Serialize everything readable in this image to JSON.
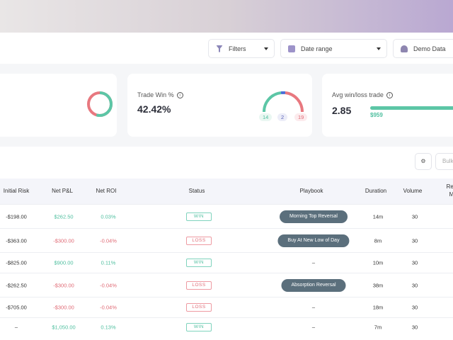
{
  "filters": {
    "filters_label": "Filters",
    "date_label": "Date range",
    "account_label": "Demo Data"
  },
  "cards": {
    "win_pct": {
      "label": "Trade Win %",
      "value": "42.42%",
      "wins": "14",
      "breakeven": "2",
      "losses": "19"
    },
    "avg_win_loss": {
      "label": "Avg win/loss trade",
      "value": "2.85",
      "avg_win": "$959"
    }
  },
  "toolbar": {
    "bulk_label": "Bulk"
  },
  "table": {
    "headers": [
      "Initial Risk",
      "Net P&L",
      "Net ROI",
      "Status",
      "Playbook",
      "Duration",
      "Volume",
      "Rea M"
    ],
    "rows": [
      {
        "risk": "-$198.00",
        "pnl": "$262.50",
        "roi": "0.03%",
        "status": "WIN",
        "playbook": "Morning Top Reversal",
        "duration": "14m",
        "volume": "30"
      },
      {
        "risk": "-$363.00",
        "pnl": "-$300.00",
        "roi": "-0.04%",
        "status": "LOSS",
        "playbook": "Buy At New Low of Day",
        "duration": "8m",
        "volume": "30"
      },
      {
        "risk": "-$825.00",
        "pnl": "$900.00",
        "roi": "0.11%",
        "status": "WIN",
        "playbook": "–",
        "duration": "10m",
        "volume": "30"
      },
      {
        "risk": "-$262.50",
        "pnl": "-$300.00",
        "roi": "-0.04%",
        "status": "LOSS",
        "playbook": "Absorption Reversal",
        "duration": "38m",
        "volume": "30"
      },
      {
        "risk": "-$705.00",
        "pnl": "-$300.00",
        "roi": "-0.04%",
        "status": "LOSS",
        "playbook": "–",
        "duration": "18m",
        "volume": "30"
      },
      {
        "risk": "–",
        "pnl": "$1,050.00",
        "roi": "0.13%",
        "status": "WIN",
        "playbook": "–",
        "duration": "7m",
        "volume": "30"
      }
    ]
  }
}
